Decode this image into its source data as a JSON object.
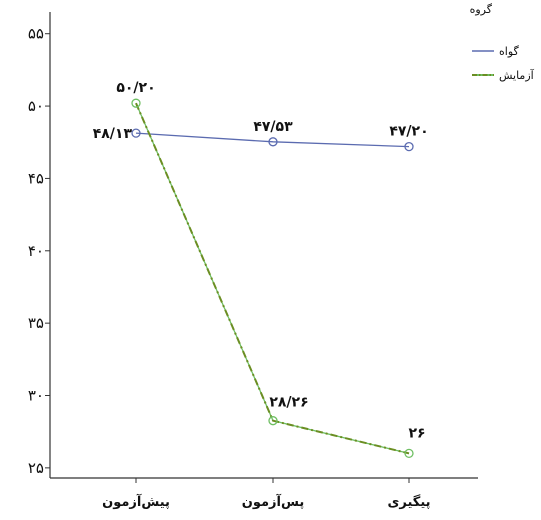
{
  "chart_data": {
    "type": "line",
    "categories": [
      "پیش‌آزمون",
      "پس‌آزمون",
      "پیگیری"
    ],
    "yticks": [
      "۲۵",
      "۳۰",
      "۳۵",
      "۴۰",
      "۴۵",
      "۵۰",
      "۵۵"
    ],
    "ytick_values": [
      25,
      30,
      35,
      40,
      45,
      50,
      55
    ],
    "ylim": [
      24.3,
      56.5
    ],
    "grid": false,
    "legend": {
      "title": "گروه",
      "position": "top-right",
      "entries": [
        "گواه",
        "آزمایش"
      ]
    },
    "series": [
      {
        "name": "گواه",
        "values": [
          48.13,
          47.53,
          47.2
        ],
        "labels": [
          "۴۸/۱۳",
          "۴۷/۵۳",
          "۴۷/۲۰"
        ],
        "color": "#5b6bb0",
        "style": "solid"
      },
      {
        "name": "آزمایش",
        "values": [
          50.2,
          28.26,
          26
        ],
        "labels": [
          "۵۰/۲۰",
          "۲۸/۲۶",
          "۲۶"
        ],
        "color": "#6fbf63",
        "dash_color": "#6b8e23",
        "style": "dash-dot"
      }
    ]
  }
}
